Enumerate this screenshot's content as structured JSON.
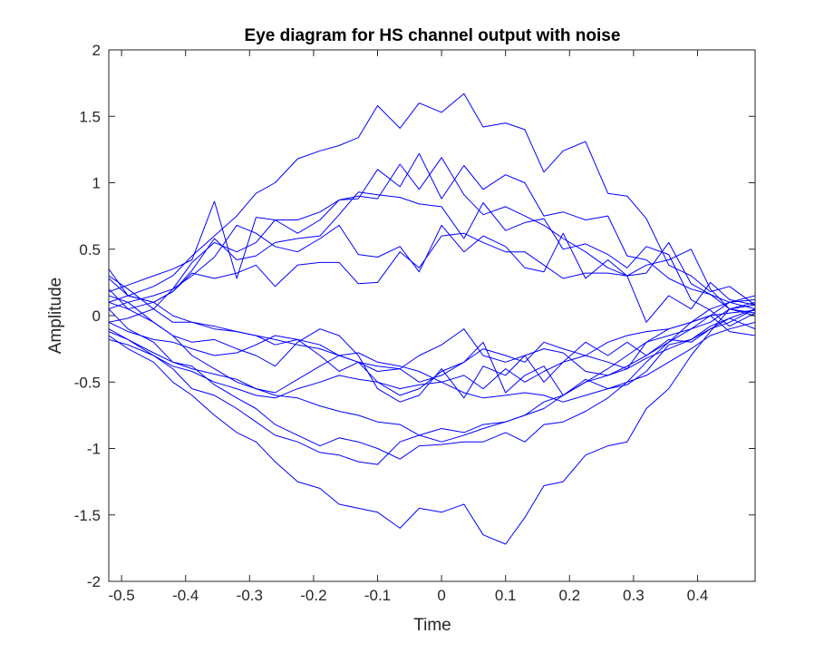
{
  "chart_data": {
    "type": "line",
    "title": "Eye diagram for HS channel output with noise",
    "xlabel": "Time",
    "ylabel": "Amplitude",
    "xlim": [
      -0.52,
      0.49
    ],
    "ylim": [
      -2,
      2
    ],
    "x_ticks": [
      -0.5,
      -0.4,
      -0.3,
      -0.2,
      -0.1,
      0,
      0.1,
      0.2,
      0.3,
      0.4
    ],
    "x_tick_labels": [
      "-0.5",
      "-0.4",
      "-0.3",
      "-0.2",
      "-0.1",
      "0",
      "0.1",
      "0.2",
      "0.3",
      "0.4"
    ],
    "y_ticks": [
      -2,
      -1.5,
      -1,
      -0.5,
      0,
      0.5,
      1,
      1.5,
      2
    ],
    "y_tick_labels": [
      "-2",
      "-1.5",
      "-1",
      "-0.5",
      "0",
      "0.5",
      "1",
      "1.5",
      "2"
    ],
    "grid": false,
    "box": true,
    "line_color": "#0000ff",
    "x": [
      -0.52,
      -0.49,
      -0.45,
      -0.42,
      -0.39,
      -0.355,
      -0.32,
      -0.29,
      -0.26,
      -0.225,
      -0.19,
      -0.16,
      -0.13,
      -0.1,
      -0.065,
      -0.035,
      0,
      0.035,
      0.065,
      0.1,
      0.13,
      0.16,
      0.19,
      0.225,
      0.26,
      0.29,
      0.32,
      0.355,
      0.39,
      0.42,
      0.45,
      0.49
    ],
    "series": [
      {
        "values": [
          0.1,
          0.15,
          0.22,
          0.3,
          0.45,
          0.6,
          0.75,
          0.92,
          1.0,
          1.18,
          1.24,
          1.28,
          1.34,
          1.58,
          1.41,
          1.6,
          1.53,
          1.67,
          1.42,
          1.45,
          1.4,
          1.08,
          1.24,
          1.31,
          0.92,
          0.9,
          0.73,
          0.38,
          0.3,
          0.18,
          0.22,
          0.08
        ]
      },
      {
        "values": [
          0.05,
          0.1,
          0.15,
          0.2,
          0.4,
          0.55,
          0.48,
          0.55,
          0.72,
          0.72,
          0.78,
          0.87,
          0.88,
          1.1,
          0.97,
          1.22,
          0.88,
          1.13,
          0.95,
          1.06,
          1.0,
          0.75,
          0.78,
          0.72,
          0.75,
          0.45,
          0.42,
          0.28,
          0.2,
          0.16,
          0.1,
          0.05
        ]
      },
      {
        "values": [
          0.18,
          0.23,
          0.3,
          0.35,
          0.42,
          0.86,
          0.28,
          0.74,
          0.72,
          0.62,
          0.72,
          0.87,
          0.9,
          0.88,
          1.14,
          0.95,
          1.19,
          0.91,
          0.76,
          0.82,
          0.75,
          0.68,
          0.58,
          0.48,
          0.36,
          0.3,
          -0.05,
          0.15,
          0.05,
          0.25,
          0.12,
          0.08
        ]
      },
      {
        "values": [
          0.28,
          0.15,
          0.1,
          0.18,
          0.34,
          0.58,
          0.42,
          0.45,
          0.55,
          0.58,
          0.6,
          0.76,
          0.93,
          0.91,
          0.89,
          0.84,
          0.82,
          0.58,
          0.85,
          0.64,
          0.7,
          0.73,
          0.5,
          0.54,
          0.46,
          0.36,
          0.52,
          0.46,
          0.12,
          0.04,
          -0.08,
          0.02
        ]
      },
      {
        "values": [
          -0.05,
          -0.02,
          0.05,
          0.2,
          0.3,
          0.44,
          0.68,
          0.62,
          0.52,
          0.48,
          0.58,
          0.68,
          0.46,
          0.44,
          0.52,
          0.33,
          0.68,
          0.48,
          0.6,
          0.52,
          0.36,
          0.33,
          0.62,
          0.28,
          0.42,
          0.3,
          0.32,
          0.55,
          0.24,
          0.16,
          0.05,
          0.02
        ]
      },
      {
        "values": [
          0.35,
          0.15,
          0.1,
          0.18,
          0.32,
          0.28,
          0.32,
          0.38,
          0.22,
          0.38,
          0.4,
          0.4,
          0.24,
          0.25,
          0.48,
          0.36,
          0.6,
          0.62,
          0.55,
          0.48,
          0.48,
          0.38,
          0.28,
          0.32,
          0.32,
          0.3,
          0.38,
          0.42,
          0.5,
          0.2,
          0.05,
          0.0
        ]
      },
      {
        "values": [
          0.3,
          0.2,
          0.05,
          -0.05,
          -0.05,
          -0.1,
          -0.12,
          -0.15,
          -0.18,
          -0.22,
          -0.25,
          -0.3,
          -0.28,
          -0.35,
          -0.38,
          -0.42,
          -0.5,
          -0.45,
          -0.55,
          -0.4,
          -0.5,
          -0.42,
          -0.35,
          -0.3,
          -0.2,
          -0.15,
          -0.12,
          -0.1,
          -0.05,
          0.0,
          0.1,
          0.15
        ]
      },
      {
        "values": [
          -0.1,
          -0.18,
          -0.3,
          -0.4,
          -0.55,
          -0.6,
          -0.7,
          -0.8,
          -0.9,
          -0.95,
          -1.03,
          -1.05,
          -1.1,
          -1.12,
          -0.95,
          -0.9,
          -0.85,
          -0.88,
          -0.82,
          -0.8,
          -0.75,
          -0.7,
          -0.6,
          -0.5,
          -0.4,
          -0.3,
          -0.2,
          -0.1,
          -0.05,
          0.0,
          0.02,
          0.04
        ]
      },
      {
        "values": [
          -0.15,
          -0.25,
          -0.35,
          -0.5,
          -0.6,
          -0.75,
          -0.88,
          -0.95,
          -1.1,
          -1.25,
          -1.3,
          -1.42,
          -1.45,
          -1.48,
          -1.6,
          -1.45,
          -1.48,
          -1.42,
          -1.65,
          -1.72,
          -1.52,
          -1.28,
          -1.25,
          -1.05,
          -0.98,
          -0.95,
          -0.7,
          -0.55,
          -0.3,
          -0.12,
          0.05,
          0.1
        ]
      },
      {
        "values": [
          0.05,
          -0.1,
          -0.2,
          -0.35,
          -0.38,
          -0.52,
          -0.62,
          -0.7,
          -0.82,
          -0.9,
          -0.98,
          -0.92,
          -0.95,
          -1.0,
          -1.08,
          -0.98,
          -0.97,
          -0.95,
          -0.95,
          -0.88,
          -0.95,
          -0.82,
          -0.8,
          -0.72,
          -0.62,
          -0.5,
          -0.35,
          -0.2,
          -0.05,
          0.05,
          0.1,
          0.12
        ]
      },
      {
        "values": [
          -0.18,
          -0.22,
          -0.3,
          -0.38,
          -0.42,
          -0.5,
          -0.55,
          -0.6,
          -0.62,
          -0.55,
          -0.5,
          -0.45,
          -0.48,
          -0.5,
          -0.55,
          -0.52,
          -0.5,
          -0.58,
          -0.62,
          -0.6,
          -0.58,
          -0.6,
          -0.65,
          -0.6,
          -0.55,
          -0.5,
          -0.45,
          -0.35,
          -0.25,
          -0.15,
          -0.1,
          -0.05
        ]
      },
      {
        "values": [
          0.1,
          0.05,
          -0.05,
          -0.15,
          -0.3,
          -0.4,
          -0.5,
          -0.55,
          -0.58,
          -0.48,
          -0.38,
          -0.3,
          -0.35,
          -0.42,
          -0.4,
          -0.5,
          -0.45,
          -0.35,
          -0.25,
          -0.3,
          -0.35,
          -0.2,
          -0.25,
          -0.3,
          -0.35,
          -0.4,
          -0.2,
          -0.15,
          -0.1,
          -0.05,
          0.05,
          0.08
        ]
      },
      {
        "values": [
          -0.05,
          -0.12,
          -0.18,
          -0.2,
          -0.25,
          -0.3,
          -0.28,
          -0.22,
          -0.15,
          -0.18,
          -0.22,
          -0.3,
          -0.35,
          -0.38,
          -0.4,
          -0.3,
          -0.22,
          -0.1,
          -0.3,
          -0.35,
          -0.3,
          -0.25,
          -0.28,
          -0.42,
          -0.45,
          -0.38,
          -0.3,
          -0.2,
          -0.1,
          0.0,
          -0.12,
          -0.15
        ]
      },
      {
        "values": [
          0.15,
          0.1,
          -0.05,
          -0.15,
          -0.2,
          -0.18,
          -0.25,
          -0.3,
          -0.38,
          -0.2,
          -0.1,
          -0.15,
          -0.3,
          -0.55,
          -0.65,
          -0.6,
          -0.4,
          -0.62,
          -0.38,
          -0.45,
          -0.3,
          -0.5,
          -0.35,
          -0.2,
          -0.3,
          -0.2,
          -0.3,
          -0.18,
          -0.2,
          -0.1,
          -0.05,
          0.05
        ]
      },
      {
        "values": [
          0.2,
          0.05,
          0.1,
          0.0,
          -0.05,
          -0.08,
          -0.12,
          -0.15,
          -0.22,
          -0.18,
          -0.3,
          -0.42,
          -0.35,
          -0.5,
          -0.6,
          -0.55,
          -0.42,
          -0.35,
          -0.2,
          -0.58,
          -0.45,
          -0.38,
          -0.6,
          -0.48,
          -0.55,
          -0.52,
          -0.42,
          -0.22,
          -0.18,
          -0.08,
          -0.02,
          -0.1
        ]
      },
      {
        "values": [
          -0.12,
          -0.18,
          -0.28,
          -0.35,
          -0.4,
          -0.44,
          -0.48,
          -0.55,
          -0.6,
          -0.62,
          -0.68,
          -0.72,
          -0.75,
          -0.8,
          -0.82,
          -0.9,
          -0.95,
          -0.9,
          -0.85,
          -0.8,
          -0.75,
          -0.65,
          -0.6,
          -0.5,
          -0.45,
          -0.4,
          -0.32,
          -0.25,
          -0.18,
          -0.1,
          -0.02,
          0.05
        ]
      }
    ]
  }
}
